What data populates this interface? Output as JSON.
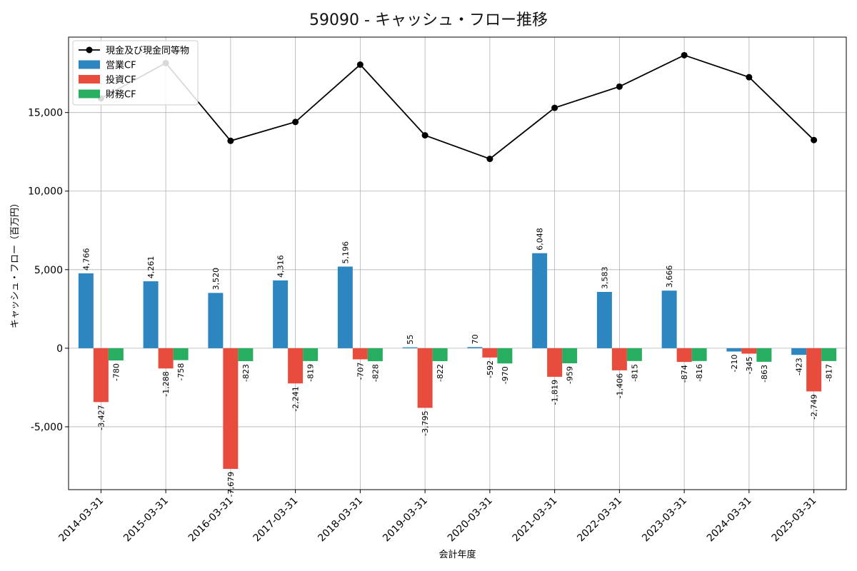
{
  "chart_data": {
    "type": "bar",
    "title": "59090 - キャッシュ・フロー推移",
    "xlabel": "会計年度",
    "ylabel": "キャッシュ・フロー（百万円）",
    "categories": [
      "2014-03-31",
      "2015-03-31",
      "2016-03-31",
      "2017-03-31",
      "2018-03-31",
      "2019-03-31",
      "2020-03-31",
      "2021-03-31",
      "2022-03-31",
      "2023-03-31",
      "2024-03-31",
      "2025-03-31"
    ],
    "ylim": [
      -9000,
      19800
    ],
    "yticks": [
      -5000,
      0,
      5000,
      10000,
      15000
    ],
    "ytick_labels": [
      "-5,000",
      "0",
      "5,000",
      "10,000",
      "15,000"
    ],
    "grid": true,
    "legend_position": "top-left",
    "series": [
      {
        "name": "営業CF",
        "kind": "bar",
        "color": "#2e86c1",
        "values": [
          4766,
          4261,
          3520,
          4316,
          5196,
          55,
          70,
          6048,
          3583,
          3666,
          -210,
          -423
        ],
        "labels": [
          "4,766",
          "4,261",
          "3,520",
          "4,316",
          "5,196",
          "55",
          "70",
          "6,048",
          "3,583",
          "3,666",
          "-210",
          "-423"
        ]
      },
      {
        "name": "投資CF",
        "kind": "bar",
        "color": "#e74c3c",
        "values": [
          -3427,
          -1288,
          -7679,
          -2241,
          -707,
          -3795,
          -592,
          -1819,
          -1406,
          -874,
          -345,
          -2749
        ],
        "labels": [
          "-3,427",
          "-1,288",
          "-7,679",
          "-2,241",
          "-707",
          "-3,795",
          "-592",
          "-1,819",
          "-1,406",
          "-874",
          "-345",
          "-2,749"
        ]
      },
      {
        "name": "財務CF",
        "kind": "bar",
        "color": "#27ae60",
        "values": [
          -780,
          -758,
          -823,
          -819,
          -828,
          -822,
          -970,
          -959,
          -815,
          -816,
          -863,
          -817
        ],
        "labels": [
          "-780",
          "-758",
          "-823",
          "-819",
          "-828",
          "-822",
          "-970",
          "-959",
          "-815",
          "-816",
          "-863",
          "-817"
        ]
      },
      {
        "name": "現金及び現金同等物",
        "kind": "line",
        "color": "#000000",
        "values": [
          15900,
          18150,
          13200,
          14400,
          18050,
          13550,
          12050,
          15300,
          16650,
          18650,
          17250,
          13250
        ]
      }
    ]
  }
}
